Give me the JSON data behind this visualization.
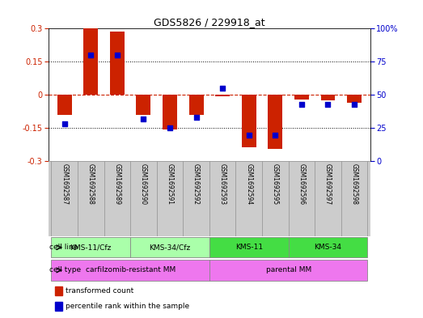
{
  "title": "GDS5826 / 229918_at",
  "samples": [
    "GSM1692587",
    "GSM1692588",
    "GSM1692589",
    "GSM1692590",
    "GSM1692591",
    "GSM1692592",
    "GSM1692593",
    "GSM1692594",
    "GSM1692595",
    "GSM1692596",
    "GSM1692597",
    "GSM1692598"
  ],
  "red_values": [
    -0.09,
    0.3,
    0.285,
    -0.09,
    -0.155,
    -0.09,
    -0.005,
    -0.235,
    -0.245,
    -0.02,
    -0.025,
    -0.035
  ],
  "blue_values_pct": [
    28,
    80,
    80,
    32,
    25,
    33,
    55,
    20,
    20,
    43,
    43,
    43
  ],
  "ylim": [
    -0.3,
    0.3
  ],
  "y2lim": [
    0,
    100
  ],
  "yticks": [
    -0.3,
    -0.15,
    0,
    0.15,
    0.3
  ],
  "y2ticks": [
    0,
    25,
    50,
    75,
    100
  ],
  "red_color": "#CC2200",
  "blue_color": "#0000CC",
  "cell_line_groups": [
    {
      "label": "KMS-11/Cfz",
      "start": 0,
      "end": 2,
      "color": "#AAFFAA"
    },
    {
      "label": "KMS-34/Cfz",
      "start": 3,
      "end": 5,
      "color": "#AAFFAA"
    },
    {
      "label": "KMS-11",
      "start": 6,
      "end": 8,
      "color": "#44DD44"
    },
    {
      "label": "KMS-34",
      "start": 9,
      "end": 11,
      "color": "#44DD44"
    }
  ],
  "cell_type_groups": [
    {
      "label": "carfilzomib-resistant MM",
      "start": 0,
      "end": 5,
      "color": "#EE77EE"
    },
    {
      "label": "parental MM",
      "start": 6,
      "end": 11,
      "color": "#EE77EE"
    }
  ],
  "cell_line_label": "cell line",
  "cell_type_label": "cell type",
  "legend_red": "transformed count",
  "legend_blue": "percentile rank within the sample",
  "sample_bg_color": "#CCCCCC",
  "sample_border_color": "#999999"
}
